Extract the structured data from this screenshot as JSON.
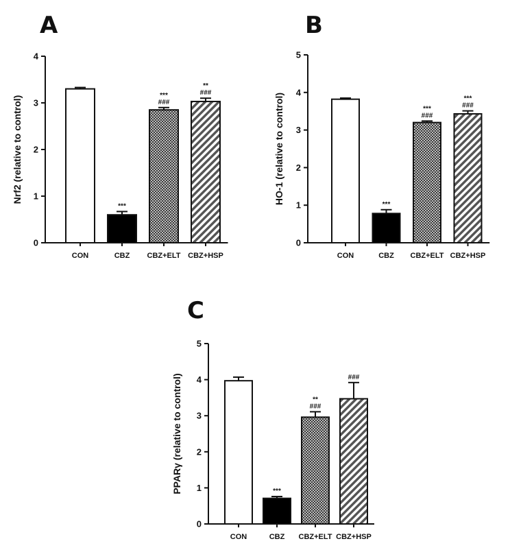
{
  "chart_data": [
    {
      "panel": "A",
      "type": "bar",
      "ylabel": "Nrf2 (relative to control)",
      "categories": [
        "CON",
        "CBZ",
        "CBZ+ELT",
        "CBZ+HSP"
      ],
      "values": [
        3.3,
        0.6,
        2.85,
        3.03
      ],
      "errors": [
        0.03,
        0.07,
        0.05,
        0.07
      ],
      "ylim": [
        0,
        4
      ],
      "yticks": [
        "0",
        "1",
        "2",
        "3",
        "4"
      ],
      "annotations": [
        {
          "category": "CBZ",
          "lines": [
            "***"
          ]
        },
        {
          "category": "CBZ+ELT",
          "lines": [
            "***",
            "###"
          ]
        },
        {
          "category": "CBZ+HSP",
          "lines": [
            "**",
            "###"
          ]
        }
      ],
      "fills": [
        "white",
        "black",
        "crosshatch",
        "diagonal"
      ]
    },
    {
      "panel": "B",
      "type": "bar",
      "ylabel": "HO-1 (relative to control)",
      "categories": [
        "CON",
        "CBZ",
        "CBZ+ELT",
        "CBZ+HSP"
      ],
      "values": [
        3.82,
        0.78,
        3.2,
        3.43
      ],
      "errors": [
        0.03,
        0.1,
        0.04,
        0.08
      ],
      "ylim": [
        0,
        5
      ],
      "yticks": [
        "0",
        "1",
        "2",
        "3",
        "4",
        "5"
      ],
      "annotations": [
        {
          "category": "CBZ",
          "lines": [
            "***"
          ]
        },
        {
          "category": "CBZ+ELT",
          "lines": [
            "***",
            "###"
          ]
        },
        {
          "category": "CBZ+HSP",
          "lines": [
            "***",
            "###"
          ]
        }
      ],
      "fills": [
        "white",
        "black",
        "crosshatch",
        "diagonal"
      ]
    },
    {
      "panel": "C",
      "type": "bar",
      "ylabel": "PPARγ (relative to control)",
      "categories": [
        "CON",
        "CBZ",
        "CBZ+ELT",
        "CBZ+HSP"
      ],
      "values": [
        3.97,
        0.71,
        2.96,
        3.47
      ],
      "errors": [
        0.1,
        0.05,
        0.15,
        0.45
      ],
      "ylim": [
        0,
        5
      ],
      "yticks": [
        "0",
        "1",
        "2",
        "3",
        "4",
        "5"
      ],
      "annotations": [
        {
          "category": "CBZ",
          "lines": [
            "***"
          ]
        },
        {
          "category": "CBZ+ELT",
          "lines": [
            "**",
            "###"
          ]
        },
        {
          "category": "CBZ+HSP",
          "lines": [
            "###"
          ]
        }
      ],
      "fills": [
        "white",
        "black",
        "crosshatch",
        "diagonal"
      ]
    }
  ]
}
